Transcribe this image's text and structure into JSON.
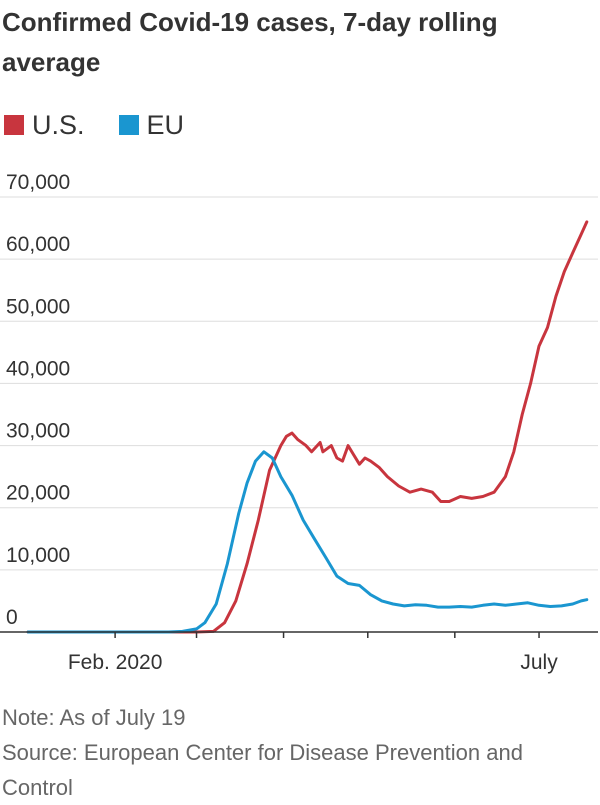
{
  "title": "Confirmed Covid-19 cases, 7-day rolling average",
  "footer": {
    "note": "Note: As of July 19",
    "source": "Source: European Center for Disease Prevention and Control"
  },
  "colors": {
    "us": "#c8353e",
    "eu": "#1a96d0",
    "grid": "#dddddd",
    "axis": "#333333",
    "text": "#333333"
  },
  "chart_data": {
    "type": "line",
    "title": "Confirmed Covid-19 cases, 7-day rolling average",
    "xlabel": "",
    "ylabel": "",
    "x_unit": "days since Jan 1, 2020",
    "xlim": [
      -10,
      203
    ],
    "ylim": [
      0,
      70000
    ],
    "yticks": [
      0,
      10000,
      20000,
      30000,
      40000,
      50000,
      60000,
      70000
    ],
    "ytick_labels": [
      "0",
      "10,000",
      "20,000",
      "30,000",
      "40,000",
      "50,000",
      "60,000",
      "70,000"
    ],
    "xticks": [
      {
        "x": 31,
        "label": "Feb. 2020"
      },
      {
        "x": 60,
        "label": ""
      },
      {
        "x": 91,
        "label": ""
      },
      {
        "x": 121,
        "label": ""
      },
      {
        "x": 152,
        "label": ""
      },
      {
        "x": 182,
        "label": "July"
      }
    ],
    "legend": [
      "U.S.",
      "EU"
    ],
    "series": [
      {
        "name": "U.S.",
        "color": "#c8353e",
        "points": [
          [
            0,
            0
          ],
          [
            60,
            0
          ],
          [
            66,
            100
          ],
          [
            70,
            1500
          ],
          [
            74,
            5000
          ],
          [
            78,
            11000
          ],
          [
            82,
            18000
          ],
          [
            86,
            26000
          ],
          [
            90,
            30000
          ],
          [
            92,
            31500
          ],
          [
            94,
            32000
          ],
          [
            96,
            31000
          ],
          [
            99,
            30000
          ],
          [
            101,
            29000
          ],
          [
            104,
            30500
          ],
          [
            105,
            29000
          ],
          [
            108,
            30000
          ],
          [
            110,
            28000
          ],
          [
            112,
            27500
          ],
          [
            114,
            30000
          ],
          [
            116,
            28500
          ],
          [
            118,
            27000
          ],
          [
            120,
            28000
          ],
          [
            122,
            27500
          ],
          [
            125,
            26500
          ],
          [
            128,
            25000
          ],
          [
            132,
            23500
          ],
          [
            136,
            22500
          ],
          [
            140,
            23000
          ],
          [
            144,
            22500
          ],
          [
            147,
            21000
          ],
          [
            150,
            21000
          ],
          [
            154,
            21800
          ],
          [
            158,
            21500
          ],
          [
            162,
            21800
          ],
          [
            166,
            22500
          ],
          [
            170,
            25000
          ],
          [
            173,
            29000
          ],
          [
            176,
            35000
          ],
          [
            179,
            40000
          ],
          [
            182,
            46000
          ],
          [
            185,
            49000
          ],
          [
            188,
            54000
          ],
          [
            191,
            58000
          ],
          [
            194,
            61000
          ],
          [
            197,
            64000
          ],
          [
            199,
            66000
          ]
        ]
      },
      {
        "name": "EU",
        "color": "#1a96d0",
        "points": [
          [
            0,
            0
          ],
          [
            50,
            0
          ],
          [
            55,
            100
          ],
          [
            60,
            500
          ],
          [
            63,
            1500
          ],
          [
            67,
            4500
          ],
          [
            71,
            11000
          ],
          [
            75,
            19000
          ],
          [
            78,
            24000
          ],
          [
            81,
            27500
          ],
          [
            84,
            29000
          ],
          [
            87,
            28000
          ],
          [
            90,
            25000
          ],
          [
            94,
            22000
          ],
          [
            98,
            18000
          ],
          [
            102,
            15000
          ],
          [
            106,
            12000
          ],
          [
            110,
            9000
          ],
          [
            114,
            7800
          ],
          [
            118,
            7500
          ],
          [
            122,
            6000
          ],
          [
            126,
            5000
          ],
          [
            130,
            4500
          ],
          [
            134,
            4200
          ],
          [
            138,
            4400
          ],
          [
            142,
            4300
          ],
          [
            146,
            4000
          ],
          [
            150,
            4000
          ],
          [
            154,
            4100
          ],
          [
            158,
            4000
          ],
          [
            162,
            4300
          ],
          [
            166,
            4500
          ],
          [
            170,
            4300
          ],
          [
            174,
            4500
          ],
          [
            178,
            4700
          ],
          [
            182,
            4300
          ],
          [
            186,
            4100
          ],
          [
            190,
            4200
          ],
          [
            194,
            4500
          ],
          [
            197,
            5000
          ],
          [
            199,
            5200
          ]
        ]
      }
    ]
  }
}
